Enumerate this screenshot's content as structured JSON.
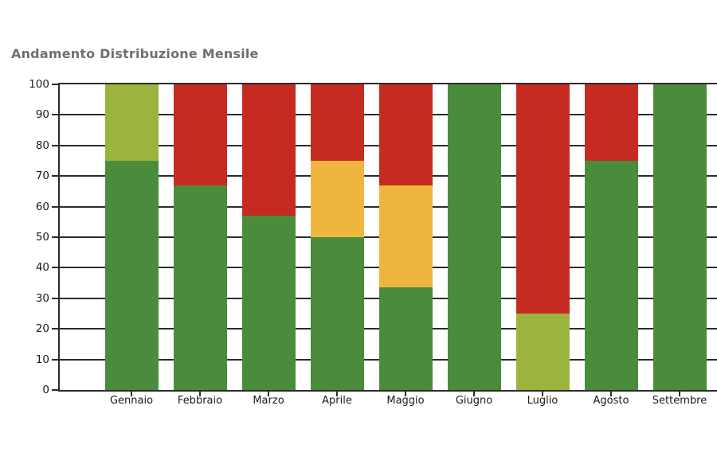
{
  "page": {
    "background_color": "#ffffff"
  },
  "chart_data": {
    "type": "bar",
    "stacked": true,
    "title": "Andamento Distribuzione Mensile",
    "title_color": "#6f6f6f",
    "categories": [
      "Gennaio",
      "Febbraio",
      "Marzo",
      "Aprile",
      "Maggio",
      "Giugno",
      "Luglio",
      "Agosto",
      "Settembre"
    ],
    "series": [
      {
        "name": "verde-scuro",
        "color": "#4a8c3c",
        "values": [
          75,
          67,
          57,
          50,
          33.5,
          100,
          0,
          75,
          100
        ]
      },
      {
        "name": "verde-chiaro",
        "color": "#9bb43e",
        "values": [
          25,
          0,
          0,
          0,
          0,
          0,
          25,
          0,
          0
        ]
      },
      {
        "name": "giallo",
        "color": "#eeb63f",
        "values": [
          0,
          0,
          0,
          25,
          33.5,
          0,
          0,
          0,
          0
        ]
      },
      {
        "name": "rosso",
        "color": "#c62b22",
        "values": [
          0,
          33,
          43,
          25,
          33,
          0,
          75,
          25,
          0
        ]
      }
    ],
    "xlabel": "",
    "ylabel": "",
    "ylim": [
      0,
      100
    ],
    "ytick_step": 10,
    "ytick_labels": [
      "0",
      "10",
      "20",
      "30",
      "40",
      "50",
      "60",
      "70",
      "80",
      "90",
      "100"
    ],
    "grid": true,
    "legend": "none",
    "axis_color": "#2b2b2b",
    "grid_color": "#2b2b2b",
    "tick_label_color": "#1a1a1a"
  }
}
